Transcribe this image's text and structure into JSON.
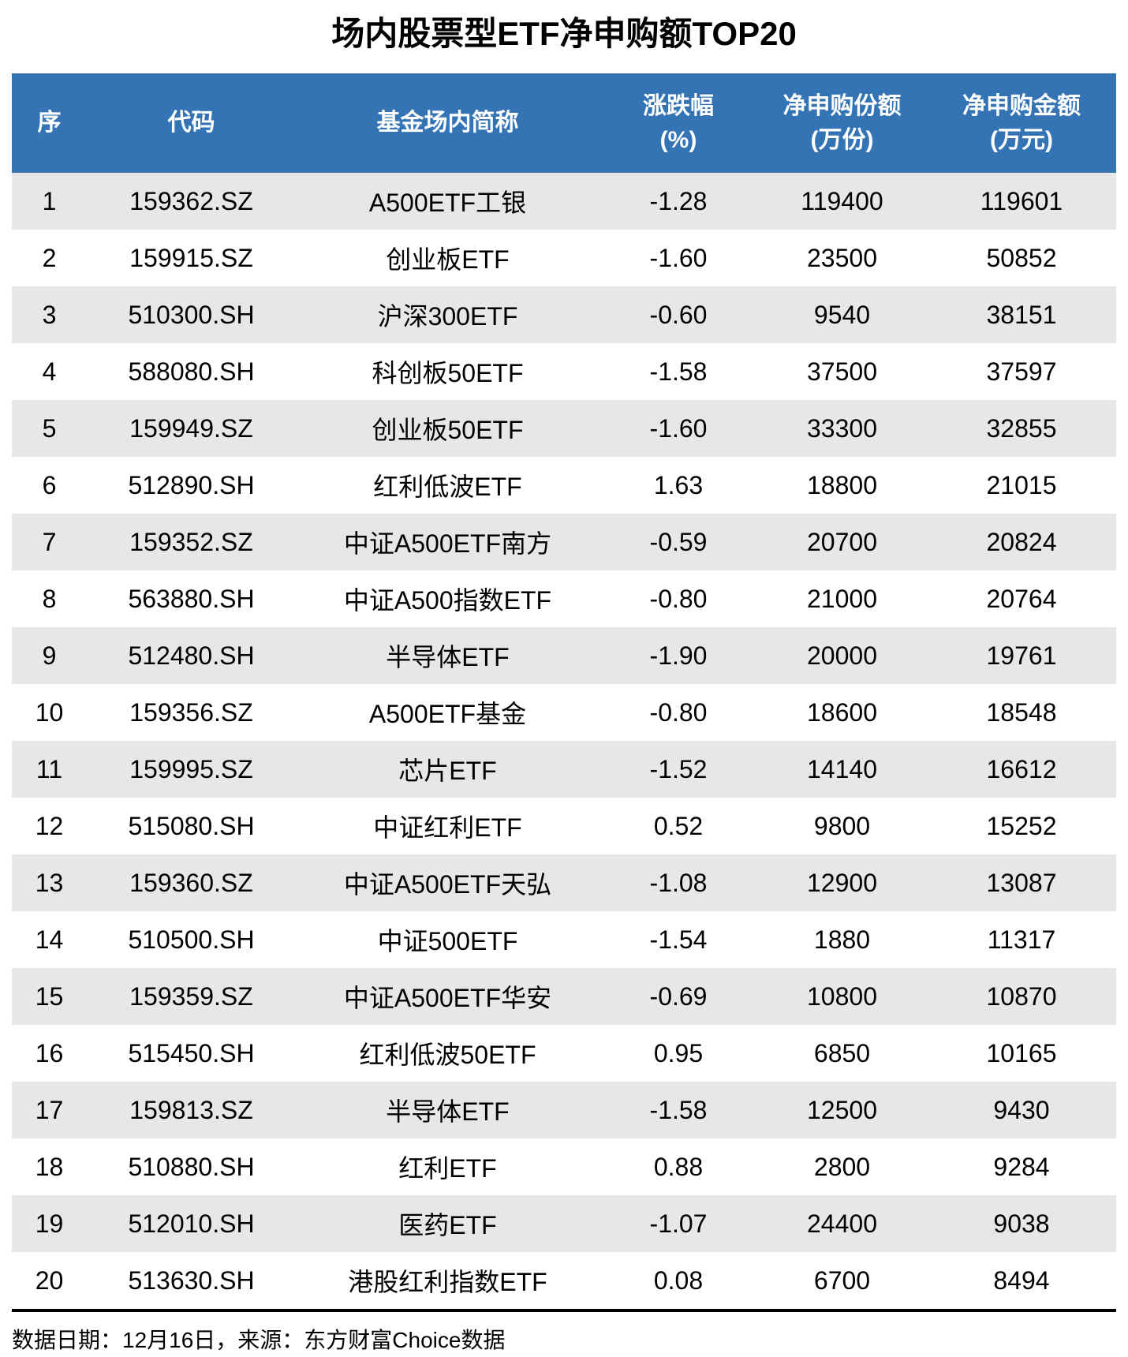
{
  "title": "场内股票型ETF净申购额TOP20",
  "chart_data": {
    "type": "table",
    "title": "场内股票型ETF净申购额TOP20",
    "columns": [
      {
        "label": "序",
        "unit": ""
      },
      {
        "label": "代码",
        "unit": ""
      },
      {
        "label": "基金场内简称",
        "unit": ""
      },
      {
        "label": "涨跌幅",
        "unit": "(%)"
      },
      {
        "label": "净申购份额",
        "unit": "(万份)"
      },
      {
        "label": "净申购金额",
        "unit": "(万元)"
      }
    ],
    "rows": [
      [
        "1",
        "159362.SZ",
        "A500ETF工银",
        "-1.28",
        "119400",
        "119601"
      ],
      [
        "2",
        "159915.SZ",
        "创业板ETF",
        "-1.60",
        "23500",
        "50852"
      ],
      [
        "3",
        "510300.SH",
        "沪深300ETF",
        "-0.60",
        "9540",
        "38151"
      ],
      [
        "4",
        "588080.SH",
        "科创板50ETF",
        "-1.58",
        "37500",
        "37597"
      ],
      [
        "5",
        "159949.SZ",
        "创业板50ETF",
        "-1.60",
        "33300",
        "32855"
      ],
      [
        "6",
        "512890.SH",
        "红利低波ETF",
        "1.63",
        "18800",
        "21015"
      ],
      [
        "7",
        "159352.SZ",
        "中证A500ETF南方",
        "-0.59",
        "20700",
        "20824"
      ],
      [
        "8",
        "563880.SH",
        "中证A500指数ETF",
        "-0.80",
        "21000",
        "20764"
      ],
      [
        "9",
        "512480.SH",
        "半导体ETF",
        "-1.90",
        "20000",
        "19761"
      ],
      [
        "10",
        "159356.SZ",
        "A500ETF基金",
        "-0.80",
        "18600",
        "18548"
      ],
      [
        "11",
        "159995.SZ",
        "芯片ETF",
        "-1.52",
        "14140",
        "16612"
      ],
      [
        "12",
        "515080.SH",
        "中证红利ETF",
        "0.52",
        "9800",
        "15252"
      ],
      [
        "13",
        "159360.SZ",
        "中证A500ETF天弘",
        "-1.08",
        "12900",
        "13087"
      ],
      [
        "14",
        "510500.SH",
        "中证500ETF",
        "-1.54",
        "1880",
        "11317"
      ],
      [
        "15",
        "159359.SZ",
        "中证A500ETF华安",
        "-0.69",
        "10800",
        "10870"
      ],
      [
        "16",
        "515450.SH",
        "红利低波50ETF",
        "0.95",
        "6850",
        "10165"
      ],
      [
        "17",
        "159813.SZ",
        "半导体ETF",
        "-1.58",
        "12500",
        "9430"
      ],
      [
        "18",
        "510880.SH",
        "红利ETF",
        "0.88",
        "2800",
        "9284"
      ],
      [
        "19",
        "512010.SH",
        "医药ETF",
        "-1.07",
        "24400",
        "9038"
      ],
      [
        "20",
        "513630.SH",
        "港股红利指数ETF",
        "0.08",
        "6700",
        "8494"
      ]
    ]
  },
  "footer": {
    "note": "数据日期：12月16日，来源：东方财富Choice数据"
  },
  "colors": {
    "header_bg": "#3474B5",
    "header_text": "#FFFFFF",
    "stripe_bg": "#E7E7E7",
    "body_text": "#000000",
    "title_text": "#000000"
  }
}
